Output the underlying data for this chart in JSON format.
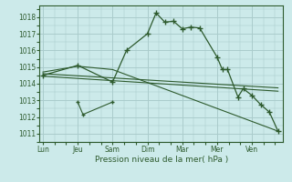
{
  "xlabel": "Pression niveau de la mer( hPa )",
  "background_color": "#cceaea",
  "grid_color": "#aacccc",
  "line_color": "#2d5a2d",
  "ylim": [
    1010.5,
    1018.7
  ],
  "yticks": [
    1011,
    1012,
    1013,
    1014,
    1015,
    1016,
    1017,
    1018
  ],
  "xlim": [
    -0.1,
    6.9
  ],
  "day_labels": [
    "Lun",
    "Jeu",
    "Sam",
    "Dim",
    "Mar",
    "Mer",
    "Ven"
  ],
  "day_positions": [
    0,
    1,
    2,
    3,
    4,
    5,
    6
  ],
  "series1_x": [
    0.0,
    1.0,
    2.0,
    2.4,
    3.0,
    3.25,
    3.5,
    3.75,
    4.0,
    4.25,
    4.5,
    5.0,
    5.15,
    5.3,
    5.6,
    5.75,
    6.0,
    6.25,
    6.5,
    6.75
  ],
  "series1_y": [
    1014.5,
    1015.1,
    1014.1,
    1016.0,
    1017.0,
    1018.25,
    1017.7,
    1017.75,
    1017.3,
    1017.4,
    1017.35,
    1015.6,
    1014.85,
    1014.85,
    1013.2,
    1013.7,
    1013.3,
    1012.75,
    1012.3,
    1011.15
  ],
  "series2_x": [
    0.0,
    1.0,
    2.0,
    6.75
  ],
  "series2_y": [
    1014.7,
    1015.05,
    1014.85,
    1011.15
  ],
  "series3_x": [
    0.0,
    6.75
  ],
  "series3_y": [
    1014.6,
    1013.75
  ],
  "series4_x": [
    0.0,
    6.75
  ],
  "series4_y": [
    1014.45,
    1013.55
  ],
  "series5_x": [
    1.0,
    1.15,
    2.0
  ],
  "series5_y": [
    1012.9,
    1012.15,
    1012.9
  ]
}
